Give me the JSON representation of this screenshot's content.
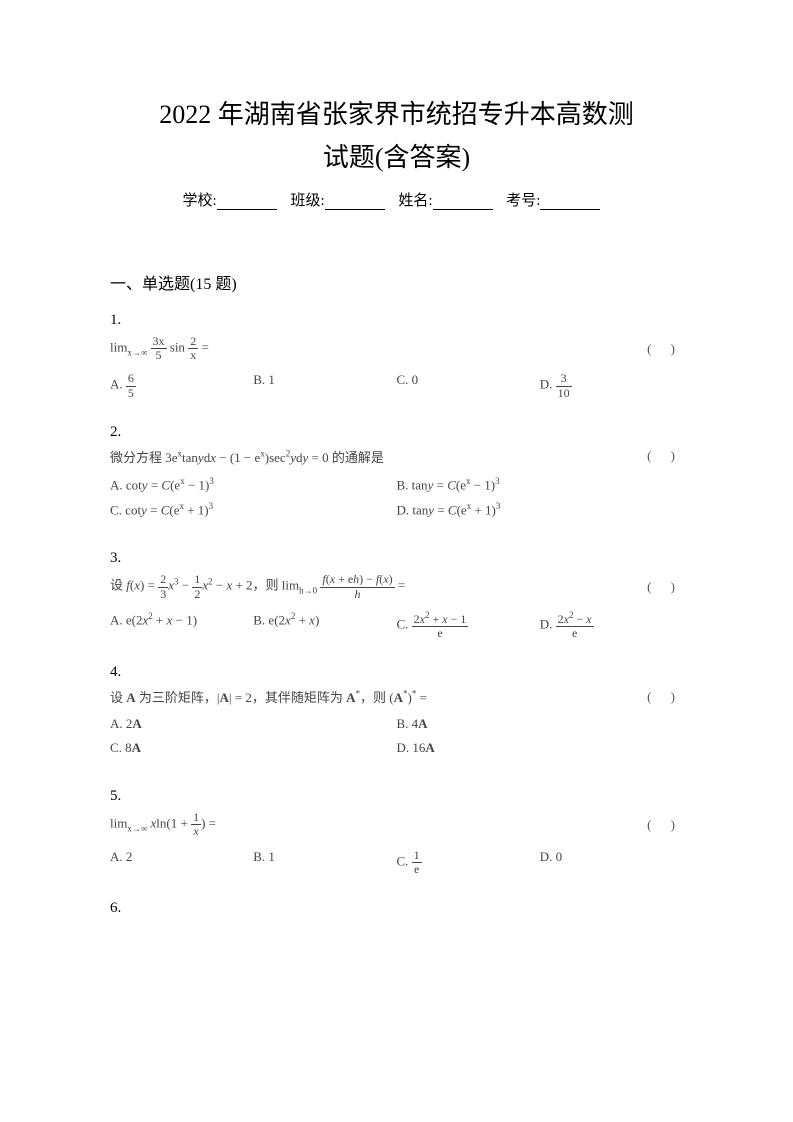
{
  "title_line1": "2022 年湖南省张家界市统招专升本高数测",
  "title_line2": "试题(含答案)",
  "info": {
    "school_label": "学校:",
    "class_label": "班级:",
    "name_label": "姓名:",
    "id_label": "考号:"
  },
  "section_title": "一、单选题(15 题)",
  "paren_mark": "(   )",
  "questions": [
    {
      "num": "1.",
      "text_html": "lim<sub>x→∞</sub> <span class='frac'><span class='num'>3x</span><span class='den'>5</span></span> sin <span class='frac'><span class='num'>2</span><span class='den'>x</span></span> =",
      "options": [
        "A. <span class='frac'><span class='num'>6</span><span class='den'>5</span></span>",
        "B. 1",
        "C. 0",
        "D. <span class='frac'><span class='num'>3</span><span class='den'>10</span></span>"
      ],
      "layout": "four"
    },
    {
      "num": "2.",
      "text_html": "微分方程 3e<sup>x</sup>tan<i>y</i>d<i>x</i> − (1 − e<sup>x</sup>)sec<sup>2</sup><i>y</i>d<i>y</i> = 0 的通解是",
      "options": [
        "A. cot<i>y</i> = <i>C</i>(e<sup>x</sup> − 1)<sup>3</sup>",
        "B. tan<i>y</i> = <i>C</i>(e<sup>x</sup> − 1)<sup>3</sup>",
        "C. cot<i>y</i> = <i>C</i>(e<sup>x</sup> + 1)<sup>3</sup>",
        "D. tan<i>y</i> = <i>C</i>(e<sup>x</sup> + 1)<sup>3</sup>"
      ],
      "layout": "two"
    },
    {
      "num": "3.",
      "text_html": "设 <i>f</i>(<i>x</i>) = <span class='frac'><span class='num'>2</span><span class='den'>3</span></span><i>x</i><sup>3</sup> − <span class='frac'><span class='num'>1</span><span class='den'>2</span></span><i>x</i><sup>2</sup> − <i>x</i> + 2，则 lim<sub>h→0</sub> <span class='frac'><span class='num'><i>f</i>(<i>x</i> + e<i>h</i>) − <i>f</i>(<i>x</i>)</span><span class='den'><i>h</i></span></span> =",
      "options": [
        "A. e(2<i>x</i><sup>2</sup> + <i>x</i> − 1)",
        "B. e(2<i>x</i><sup>2</sup> + <i>x</i>)",
        "C. <span class='frac'><span class='num'>2<i>x</i><sup>2</sup> + <i>x</i> − 1</span><span class='den'>e</span></span>",
        "D. <span class='frac'><span class='num'>2<i>x</i><sup>2</sup> − <i>x</i></span><span class='den'>e</span></span>"
      ],
      "layout": "four"
    },
    {
      "num": "4.",
      "text_html": "设 <b>A</b> 为三阶矩阵，|<b>A</b>| = 2，其伴随矩阵为 <b>A</b><sup>*</sup>，则 (<b>A</b><sup>*</sup>)<sup>*</sup> =",
      "options": [
        "A. 2<b>A</b>",
        "B. 4<b>A</b>",
        "C. 8<b>A</b>",
        "D. 16<b>A</b>"
      ],
      "layout": "two"
    },
    {
      "num": "5.",
      "text_html": "lim<sub>x→∞</sub> <i>x</i>ln(1 + <span class='frac'><span class='num'>1</span><span class='den'><i>x</i></span></span>) =",
      "options": [
        "A. 2",
        "B. 1",
        "C. <span class='frac'><span class='num'>1</span><span class='den'>e</span></span>",
        "D. 0"
      ],
      "layout": "four"
    },
    {
      "num": "6.",
      "text_html": "",
      "options": [],
      "layout": "none"
    }
  ],
  "colors": {
    "background": "#ffffff",
    "text": "#000000",
    "math_text": "#444444"
  },
  "typography": {
    "title_fontsize": 26,
    "body_fontsize": 14,
    "math_fontsize": 13,
    "font_family": "SimSun"
  }
}
